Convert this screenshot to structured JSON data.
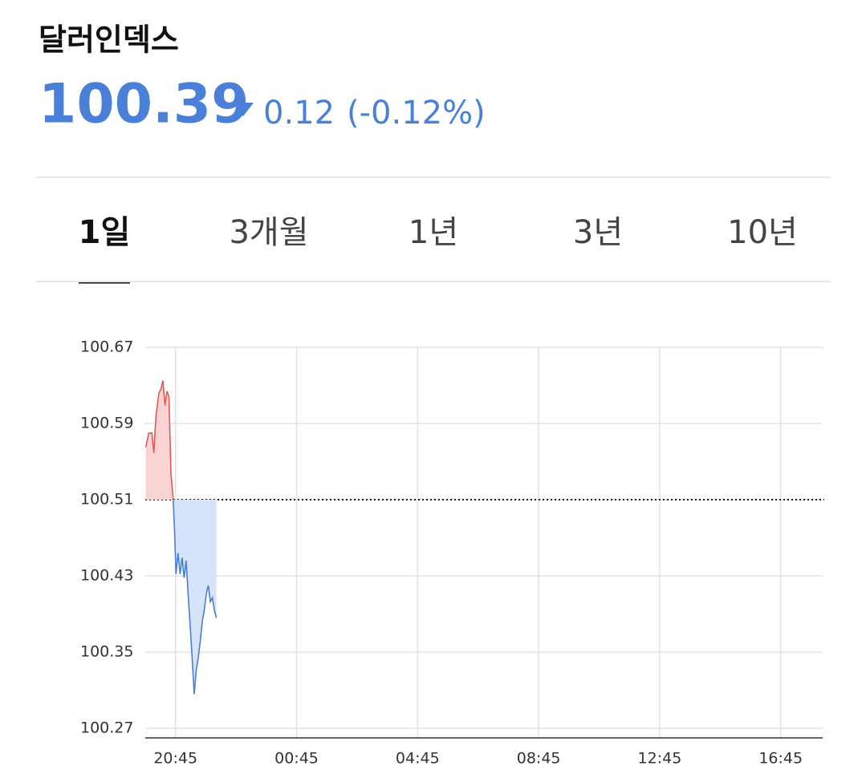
{
  "header": {
    "title": "달러인덱스",
    "price": "100.39",
    "change": "0.12",
    "change_percent": "(-0.12%)"
  },
  "tabs": {
    "items": [
      "1일",
      "3개월",
      "1년",
      "3년",
      "10년"
    ],
    "selected": 0
  },
  "chart_data": {
    "type": "line",
    "x": [
      "19:46",
      "19:52",
      "19:58",
      "20:02",
      "20:06",
      "20:12",
      "20:16",
      "20:20",
      "20:24",
      "20:28",
      "20:32",
      "20:36",
      "20:40",
      "20:43",
      "20:46",
      "20:50",
      "20:54",
      "20:58",
      "21:02",
      "21:06",
      "21:10",
      "21:14",
      "21:18",
      "21:22",
      "21:26",
      "21:30",
      "21:34",
      "21:38",
      "21:42",
      "21:46",
      "21:50",
      "21:54",
      "21:58",
      "22:02",
      "22:06"
    ],
    "series": [
      {
        "name": "달러인덱스",
        "color": "#4a7fd6",
        "up_color": "#e05a5a",
        "values": [
          100.565,
          100.58,
          100.58,
          100.559,
          100.597,
          100.622,
          100.626,
          100.635,
          100.609,
          100.624,
          100.618,
          100.538,
          100.513,
          100.479,
          100.432,
          100.454,
          100.432,
          100.449,
          100.428,
          100.446,
          100.411,
          100.378,
          100.344,
          100.306,
          100.331,
          100.344,
          100.361,
          100.382,
          100.394,
          100.411,
          100.42,
          100.403,
          100.407,
          100.394,
          100.386
        ]
      }
    ],
    "reference": 100.51,
    "xlim": [
      "19:45",
      "18:05"
    ],
    "xticks": [
      "20:45",
      "00:45",
      "04:45",
      "08:45",
      "12:45",
      "16:45"
    ],
    "ylim": [
      100.26,
      100.67
    ],
    "yticks": [
      100.27,
      100.35,
      100.43,
      100.51,
      100.59,
      100.67
    ],
    "grid": true
  }
}
